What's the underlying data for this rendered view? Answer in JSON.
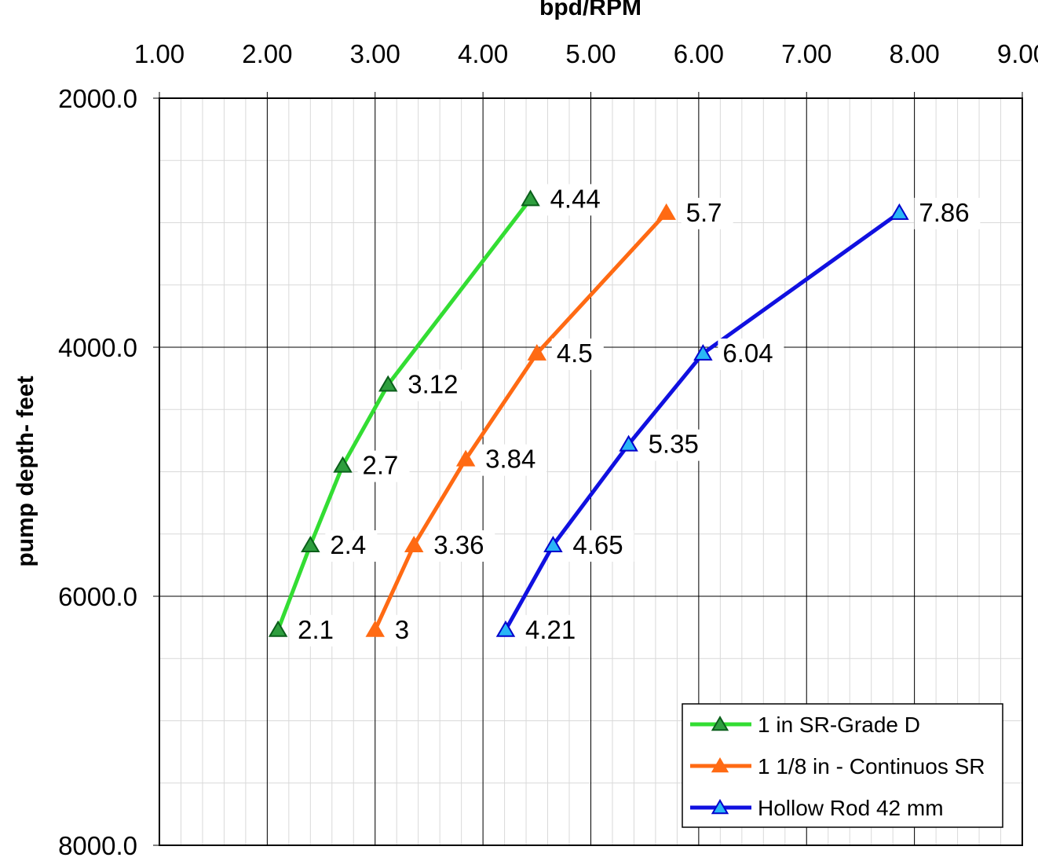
{
  "chart_data": {
    "type": "line",
    "title": "",
    "xlabel": "bpd/RPM",
    "ylabel": "pump depth- feet",
    "x_axis_position": "top",
    "y_axis_reversed": true,
    "xlim": [
      1,
      9
    ],
    "ylim": [
      2000,
      8000
    ],
    "x_ticks": [
      "1.00",
      "2.00",
      "3.00",
      "4.00",
      "5.00",
      "6.00",
      "7.00",
      "8.00",
      "9.00"
    ],
    "y_ticks": [
      "2000.0",
      "4000.0",
      "6000.0",
      "8000.0"
    ],
    "grid": true,
    "legend_position": "bottom-right",
    "series": [
      {
        "name": "1 in SR-Grade D",
        "color": "#33dd33",
        "marker_color": "#2e9e3e",
        "marker": "triangle",
        "points": [
          {
            "x": 2.1,
            "y": 6270,
            "label": "2.1"
          },
          {
            "x": 2.4,
            "y": 5590,
            "label": "2.4"
          },
          {
            "x": 2.7,
            "y": 4950,
            "label": "2.7"
          },
          {
            "x": 3.12,
            "y": 4300,
            "label": "3.12"
          },
          {
            "x": 4.44,
            "y": 2810,
            "label": "4.44"
          }
        ]
      },
      {
        "name": "1 1/8 in - Continuos SR",
        "color": "#ff6a13",
        "marker_color": "#ff6a13",
        "marker": "triangle",
        "points": [
          {
            "x": 3,
            "y": 6270,
            "label": "3"
          },
          {
            "x": 3.36,
            "y": 5590,
            "label": "3.36"
          },
          {
            "x": 3.84,
            "y": 4900,
            "label": "3.84"
          },
          {
            "x": 4.15,
            "y": 4500,
            "label": ""
          },
          {
            "x": 4.5,
            "y": 4050,
            "label": "4.5"
          },
          {
            "x": 5.7,
            "y": 2920,
            "label": "5.7"
          }
        ]
      },
      {
        "name": "Hollow  Rod 42 mm",
        "color": "#1010e0",
        "marker_color": "#29b6f6",
        "marker": "triangle",
        "points": [
          {
            "x": 4.21,
            "y": 6270,
            "label": "4.21"
          },
          {
            "x": 4.65,
            "y": 5590,
            "label": "4.65"
          },
          {
            "x": 5.35,
            "y": 4780,
            "label": "5.35"
          },
          {
            "x": 6.04,
            "y": 4050,
            "label": "6.04"
          },
          {
            "x": 7.86,
            "y": 2920,
            "label": "7.86"
          }
        ]
      }
    ]
  }
}
